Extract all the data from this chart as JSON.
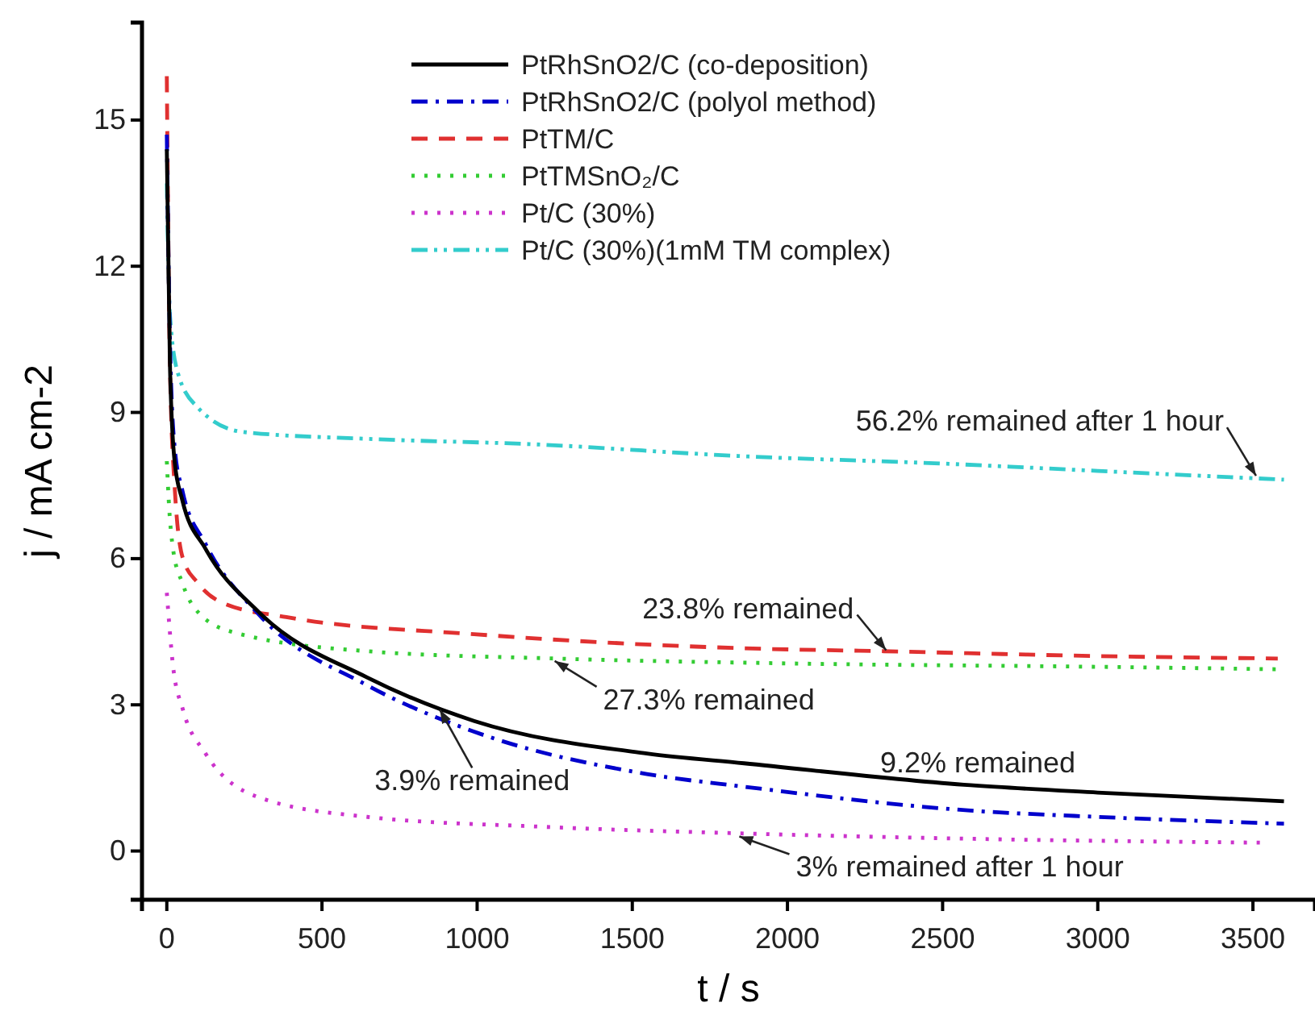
{
  "chart_data": {
    "type": "line",
    "xlabel": "t / s",
    "ylabel": "j / mA cm-2",
    "xlim": [
      -80,
      3700
    ],
    "ylim": [
      -1,
      17
    ],
    "xticks": [
      0,
      500,
      1000,
      1500,
      2000,
      2500,
      3000,
      3500
    ],
    "yticks": [
      0,
      3,
      6,
      9,
      12,
      15
    ],
    "grid": false,
    "legend": "top",
    "marker": "none",
    "series": [
      {
        "name": "PtRhSnO2/C (co-deposition)",
        "color": "#000000",
        "line_style": "solid",
        "x": [
          0,
          10,
          25,
          50,
          125,
          297,
          646,
          990,
          1547,
          1860,
          2590,
          3000,
          3600
        ],
        "values": [
          14.4,
          10,
          8,
          7.2,
          6.2,
          4.9,
          3.56,
          2.67,
          2.0,
          1.8,
          1.35,
          1.2,
          1.02
        ]
      },
      {
        "name": "PtRhSnO2/C (polyol method)",
        "color": "#0000cc",
        "line_style": "dashdot",
        "x": [
          0,
          10,
          25,
          50,
          125,
          297,
          646,
          990,
          1547,
          1860,
          2590,
          3000,
          3600
        ],
        "values": [
          14.7,
          10.5,
          8.3,
          7.4,
          6.3,
          4.85,
          3.4,
          2.45,
          1.58,
          1.32,
          0.83,
          0.7,
          0.56
        ]
      },
      {
        "name": "PtTM/C",
        "color": "#e03030",
        "line_style": "dashed",
        "x": [
          0,
          10,
          25,
          52,
          100,
          177,
          385,
          990,
          1860,
          2310,
          3000,
          3580
        ],
        "values": [
          15.9,
          10,
          7.5,
          6.0,
          5.5,
          5.1,
          4.8,
          4.45,
          4.16,
          4.1,
          4.0,
          3.95
        ]
      },
      {
        "name": "PtTMSnO₂/C",
        "color": "#33cc33",
        "line_style": "dotted",
        "x": [
          0,
          8,
          20,
          50,
          88,
          208,
          646,
          1250,
          2000,
          3000,
          3580
        ],
        "values": [
          8.0,
          7.0,
          6.2,
          5.5,
          5.0,
          4.5,
          4.1,
          3.95,
          3.85,
          3.78,
          3.73
        ]
      },
      {
        "name": "Pt/C (30%)",
        "color": "#cc33cc",
        "line_style": "dotted",
        "x": [
          0,
          20,
          52,
          125,
          297,
          646,
          1200,
          1860,
          2600,
          3540
        ],
        "values": [
          5.3,
          3.8,
          2.9,
          2.0,
          1.1,
          0.7,
          0.5,
          0.36,
          0.25,
          0.17
        ]
      },
      {
        "name": "Pt/C (30%)(1mM TM complex)",
        "color": "#33cccc",
        "line_style": "dashdotdot",
        "x": [
          0,
          10,
          36,
          100,
          245,
          677,
          1167,
          1860,
          2500,
          3000,
          3600
        ],
        "values": [
          13.7,
          11,
          9.8,
          9.1,
          8.6,
          8.45,
          8.35,
          8.1,
          7.95,
          7.8,
          7.62
        ]
      }
    ],
    "annotations": [
      {
        "text": "56.2% remained after 1 hour",
        "x": 3510,
        "y": 7.7
      },
      {
        "text": "23.8% remained",
        "x": 2318,
        "y": 4.12
      },
      {
        "text": "27.3% remained",
        "x": 1250,
        "y": 3.9
      },
      {
        "text": "3.9% remained",
        "x": 880,
        "y": 2.9
      },
      "9.2% remained",
      {
        "text": "3% remained after 1 hour",
        "x": 1845,
        "y": 0.3
      }
    ]
  }
}
